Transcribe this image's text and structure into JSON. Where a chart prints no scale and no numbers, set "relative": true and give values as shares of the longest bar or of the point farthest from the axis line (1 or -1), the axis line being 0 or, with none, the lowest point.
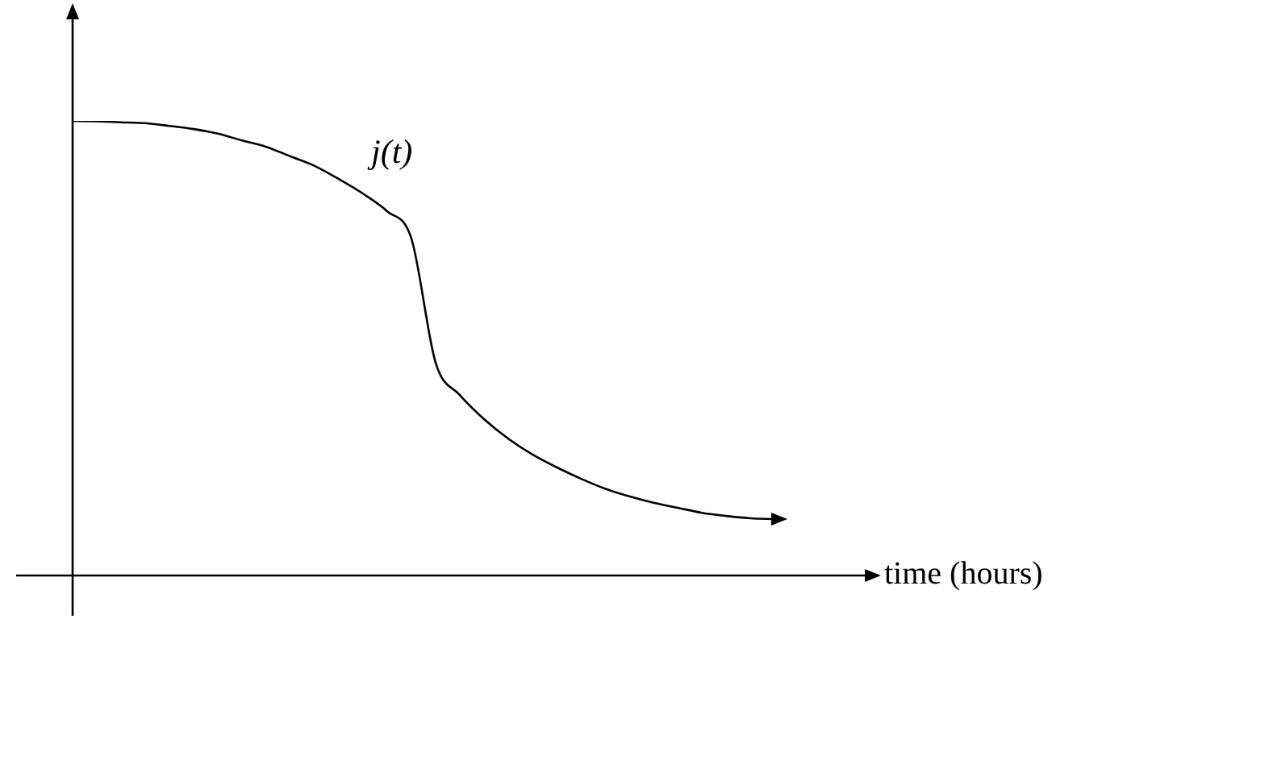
{
  "chart_data": {
    "type": "line",
    "xlabel": "time (hours)",
    "relative": true,
    "categories": [
      null,
      null,
      null,
      null,
      null,
      null,
      null,
      null,
      null,
      null,
      null,
      null,
      null,
      null,
      null,
      null,
      null,
      null,
      null,
      null,
      null,
      null,
      null,
      null,
      null,
      null,
      null,
      null,
      null,
      null
    ],
    "series": [
      {
        "name": "j(t)",
        "color": "#000000",
        "values": [
          1.0,
          0.999,
          0.997,
          0.995,
          0.989,
          0.982,
          0.972,
          0.957,
          0.943,
          0.922,
          0.901,
          0.872,
          0.84,
          0.801,
          0.741,
          0.468,
          0.397,
          0.344,
          0.301,
          0.266,
          0.238,
          0.213,
          0.191,
          0.174,
          0.16,
          0.149,
          0.138,
          0.131,
          0.126,
          0.124
        ]
      }
    ]
  }
}
